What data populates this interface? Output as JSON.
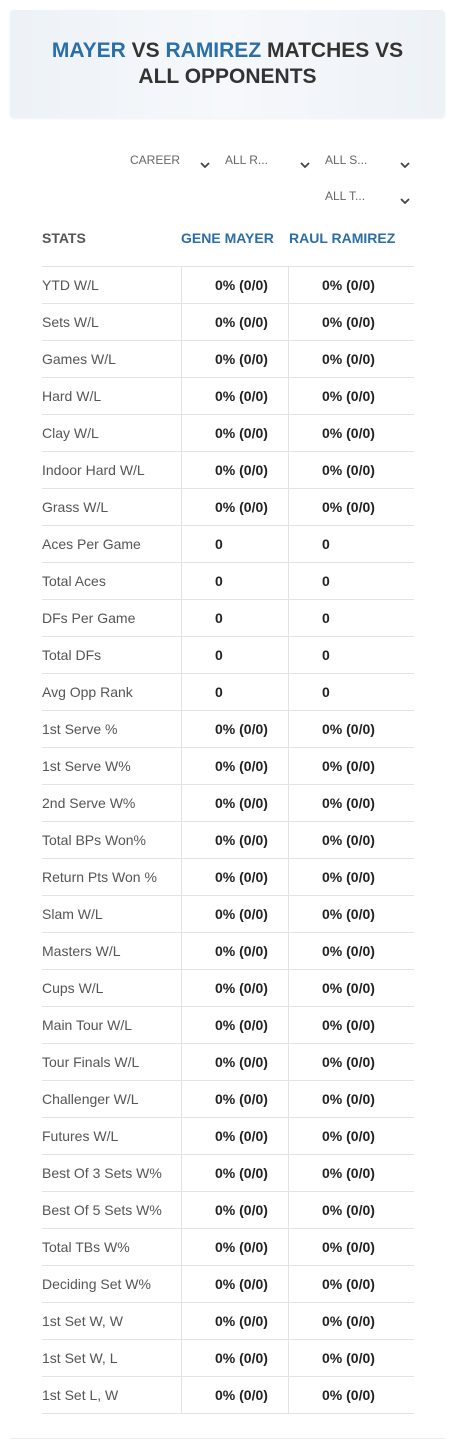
{
  "header": {
    "player1": "MAYER",
    "vs": "VS",
    "player2": "RAMIREZ",
    "rest": "MATCHES VS ALL OPPONENTS"
  },
  "filters": [
    "CAREER",
    "ALL R...",
    "ALL S...",
    "ALL T..."
  ],
  "table": {
    "columns": [
      "STATS",
      "GENE MAYER",
      "RAUL RAMIREZ"
    ],
    "rows": [
      [
        "YTD W/L",
        "0% (0/0)",
        "0% (0/0)"
      ],
      [
        "Sets W/L",
        "0% (0/0)",
        "0% (0/0)"
      ],
      [
        "Games W/L",
        "0% (0/0)",
        "0% (0/0)"
      ],
      [
        "Hard W/L",
        "0% (0/0)",
        "0% (0/0)"
      ],
      [
        "Clay W/L",
        "0% (0/0)",
        "0% (0/0)"
      ],
      [
        "Indoor Hard W/L",
        "0% (0/0)",
        "0% (0/0)"
      ],
      [
        "Grass W/L",
        "0% (0/0)",
        "0% (0/0)"
      ],
      [
        "Aces Per Game",
        0,
        0
      ],
      [
        "Total Aces",
        0,
        0
      ],
      [
        "DFs Per Game",
        0,
        0
      ],
      [
        "Total DFs",
        0,
        0
      ],
      [
        "Avg Opp Rank",
        0,
        0
      ],
      [
        "1st Serve %",
        "0% (0/0)",
        "0% (0/0)"
      ],
      [
        "1st Serve W%",
        "0% (0/0)",
        "0% (0/0)"
      ],
      [
        "2nd Serve W%",
        "0% (0/0)",
        "0% (0/0)"
      ],
      [
        "Total BPs Won%",
        "0% (0/0)",
        "0% (0/0)"
      ],
      [
        "Return Pts Won %",
        "0% (0/0)",
        "0% (0/0)"
      ],
      [
        "Slam W/L",
        "0% (0/0)",
        "0% (0/0)"
      ],
      [
        "Masters W/L",
        "0% (0/0)",
        "0% (0/0)"
      ],
      [
        "Cups W/L",
        "0% (0/0)",
        "0% (0/0)"
      ],
      [
        "Main Tour W/L",
        "0% (0/0)",
        "0% (0/0)"
      ],
      [
        "Tour Finals W/L",
        "0% (0/0)",
        "0% (0/0)"
      ],
      [
        "Challenger W/L",
        "0% (0/0)",
        "0% (0/0)"
      ],
      [
        "Futures W/L",
        "0% (0/0)",
        "0% (0/0)"
      ],
      [
        "Best Of 3 Sets W%",
        "0% (0/0)",
        "0% (0/0)"
      ],
      [
        "Best Of 5 Sets W%",
        "0% (0/0)",
        "0% (0/0)"
      ],
      [
        "Total TBs W%",
        "0% (0/0)",
        "0% (0/0)"
      ],
      [
        "Deciding Set W%",
        "0% (0/0)",
        "0% (0/0)"
      ],
      [
        "1st Set W, W",
        "0% (0/0)",
        "0% (0/0)"
      ],
      [
        "1st Set W, L",
        "0% (0/0)",
        "0% (0/0)"
      ],
      [
        "1st Set L, W",
        "0% (0/0)",
        "0% (0/0)"
      ]
    ]
  }
}
